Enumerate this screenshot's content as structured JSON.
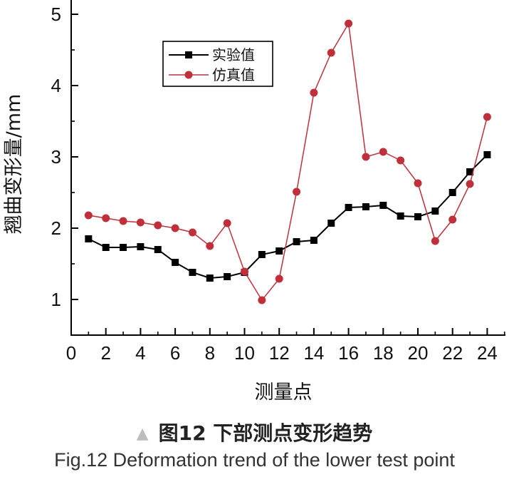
{
  "chart_data": {
    "type": "line",
    "title": "",
    "xlabel": "测量点",
    "ylabel": "翘曲变形量/mm",
    "xlim": [
      0,
      25
    ],
    "ylim": [
      0.5,
      5
    ],
    "xticks": [
      0,
      2,
      4,
      6,
      8,
      10,
      12,
      14,
      16,
      18,
      20,
      22,
      24
    ],
    "yticks": [
      1,
      2,
      3,
      4,
      5
    ],
    "grid": false,
    "legend_position": "top-left",
    "x": [
      1,
      2,
      3,
      4,
      5,
      6,
      7,
      8,
      9,
      10,
      11,
      12,
      13,
      14,
      15,
      16,
      17,
      18,
      19,
      20,
      21,
      22,
      23,
      24
    ],
    "series": [
      {
        "name": "实验值",
        "color": "#000000",
        "marker": "square",
        "values": [
          1.85,
          1.73,
          1.73,
          1.74,
          1.7,
          1.52,
          1.38,
          1.3,
          1.32,
          1.38,
          1.63,
          1.68,
          1.81,
          1.83,
          2.07,
          2.29,
          2.3,
          2.32,
          2.17,
          2.16,
          2.24,
          2.5,
          2.79,
          3.03
        ]
      },
      {
        "name": "仿真值",
        "color": "#c0303a",
        "marker": "circle",
        "values": [
          2.18,
          2.14,
          2.1,
          2.08,
          2.04,
          2.0,
          1.94,
          1.75,
          2.07,
          1.39,
          0.99,
          1.29,
          2.51,
          3.9,
          4.46,
          4.87,
          3.0,
          3.07,
          2.95,
          2.63,
          1.82,
          2.12,
          2.62,
          3.56
        ]
      }
    ]
  },
  "caption": {
    "marker": "▲",
    "chinese": "图12 下部测点变形趋势",
    "english": "Fig.12 Deformation trend of the lower test point"
  }
}
